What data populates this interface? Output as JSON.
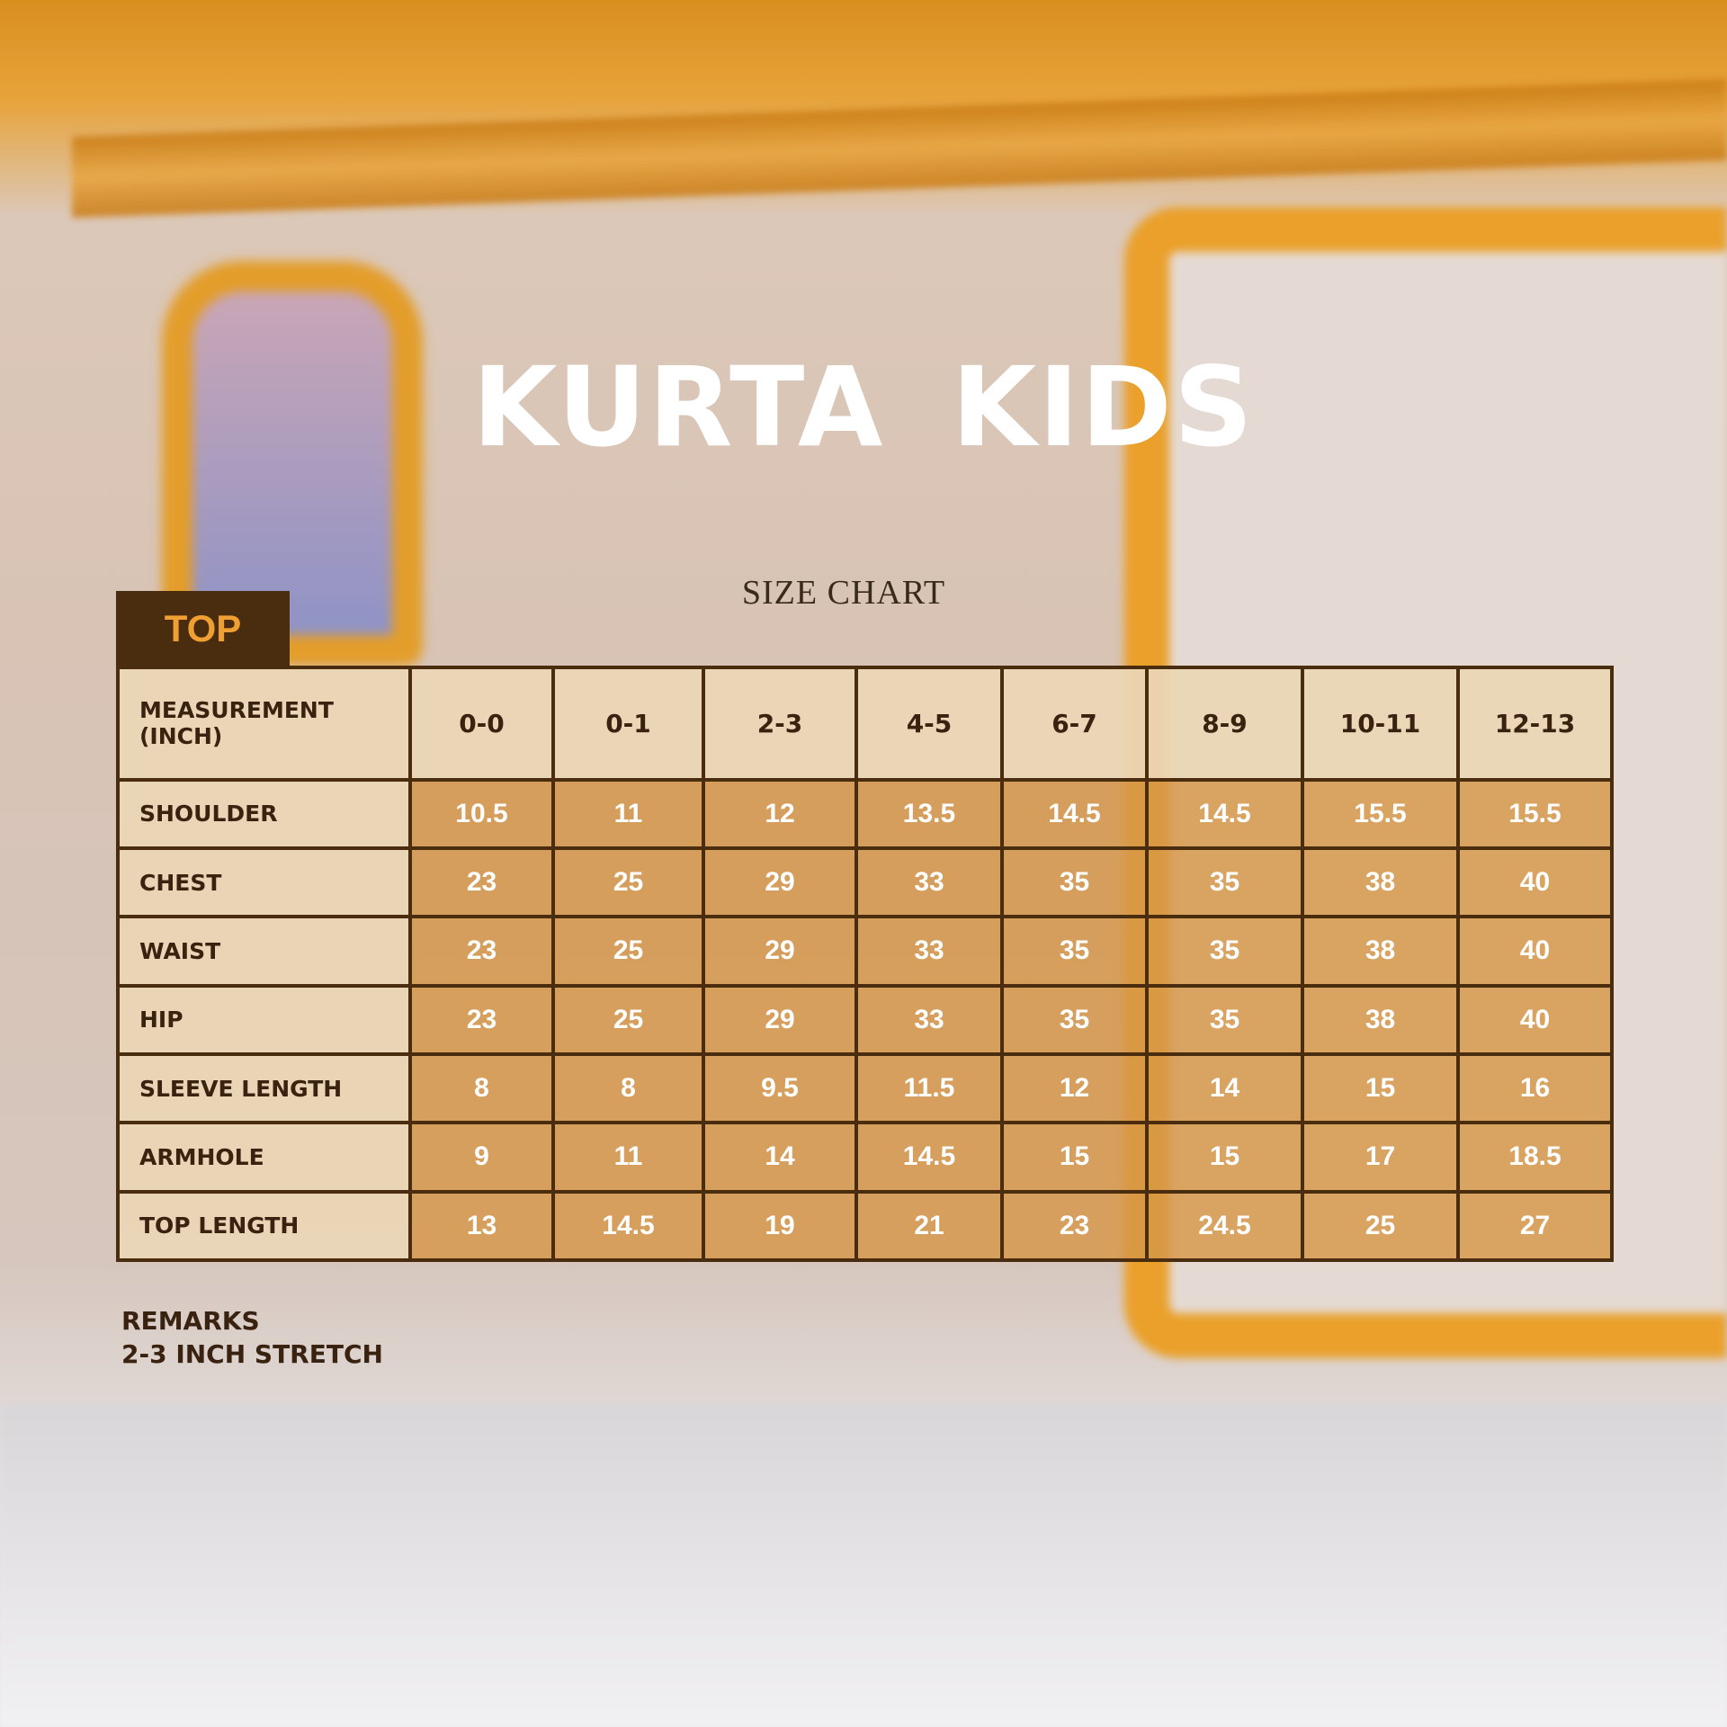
{
  "title": "KURTA KIDS",
  "subtitle": "SIZE CHART",
  "section_tab": "TOP",
  "table": {
    "header_label": "MEASUREMENT (INCH)",
    "sizes": [
      "0-0",
      "0-1",
      "2-3",
      "4-5",
      "6-7",
      "8-9",
      "10-11",
      "12-13"
    ],
    "rows": [
      {
        "label": "SHOULDER",
        "values": [
          "10.5",
          "11",
          "12",
          "13.5",
          "14.5",
          "14.5",
          "15.5",
          "15.5"
        ]
      },
      {
        "label": "CHEST",
        "values": [
          "23",
          "25",
          "29",
          "33",
          "35",
          "35",
          "38",
          "40"
        ]
      },
      {
        "label": "WAIST",
        "values": [
          "23",
          "25",
          "29",
          "33",
          "35",
          "35",
          "38",
          "40"
        ]
      },
      {
        "label": "HIP",
        "values": [
          "23",
          "25",
          "29",
          "33",
          "35",
          "35",
          "38",
          "40"
        ]
      },
      {
        "label": "SLEEVE LENGTH",
        "values": [
          "8",
          "8",
          "9.5",
          "11.5",
          "12",
          "14",
          "15",
          "16"
        ]
      },
      {
        "label": "ARMHOLE",
        "values": [
          "9",
          "11",
          "14",
          "14.5",
          "15",
          "15",
          "17",
          "18.5"
        ]
      },
      {
        "label": "TOP LENGTH",
        "values": [
          "13",
          "14.5",
          "19",
          "21",
          "23",
          "24.5",
          "25",
          "27"
        ]
      }
    ]
  },
  "remarks": {
    "label": "REMARKS",
    "text": "2-3 INCH STRETCH"
  },
  "colors": {
    "dark_brown": "#4a2c0f",
    "tab_text": "#f0a032",
    "label_cell": "#ebd6b6",
    "value_cell": "#d69648"
  }
}
